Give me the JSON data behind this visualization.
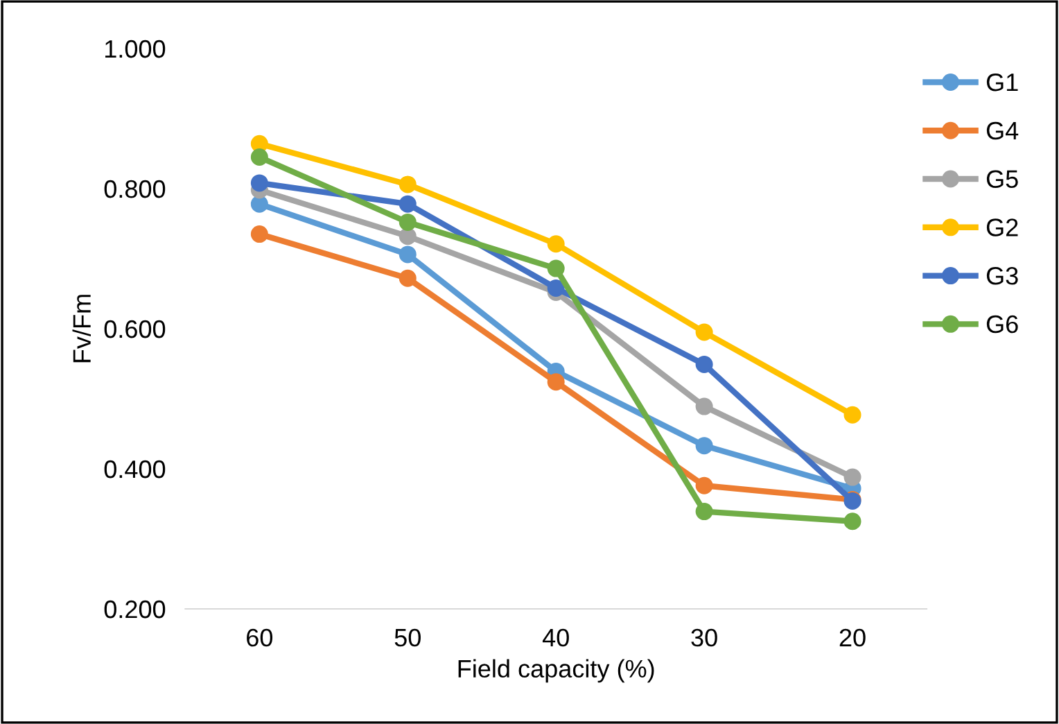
{
  "chart_data": {
    "type": "line",
    "xlabel": "Field capacity (%)",
    "ylabel": "Fv/Fm",
    "categories": [
      "60",
      "50",
      "40",
      "30",
      "20"
    ],
    "series": [
      {
        "name": "G1",
        "color": "#5b9bd5",
        "values": [
          0.778,
          0.706,
          0.539,
          0.433,
          0.372
        ]
      },
      {
        "name": "G4",
        "color": "#ed7d31",
        "values": [
          0.735,
          0.672,
          0.524,
          0.376,
          0.356
        ]
      },
      {
        "name": "G5",
        "color": "#a5a5a5",
        "values": [
          0.798,
          0.732,
          0.652,
          0.489,
          0.388
        ]
      },
      {
        "name": "G2",
        "color": "#ffc000",
        "values": [
          0.864,
          0.806,
          0.721,
          0.595,
          0.477
        ]
      },
      {
        "name": "G3",
        "color": "#4472c4",
        "values": [
          0.808,
          0.778,
          0.658,
          0.549,
          0.354
        ]
      },
      {
        "name": "G6",
        "color": "#70ad47",
        "values": [
          0.845,
          0.752,
          0.686,
          0.339,
          0.325
        ]
      }
    ],
    "ylim": [
      0.2,
      1.0
    ],
    "yticks": [
      {
        "value": 0.2,
        "label": "0.200"
      },
      {
        "value": 0.4,
        "label": "0.400"
      },
      {
        "value": 0.6,
        "label": "0.600"
      },
      {
        "value": 0.8,
        "label": "0.800"
      },
      {
        "value": 1.0,
        "label": "1.000"
      }
    ],
    "grid": false,
    "legend": "right",
    "marker": "circle",
    "line_style": "solid"
  }
}
